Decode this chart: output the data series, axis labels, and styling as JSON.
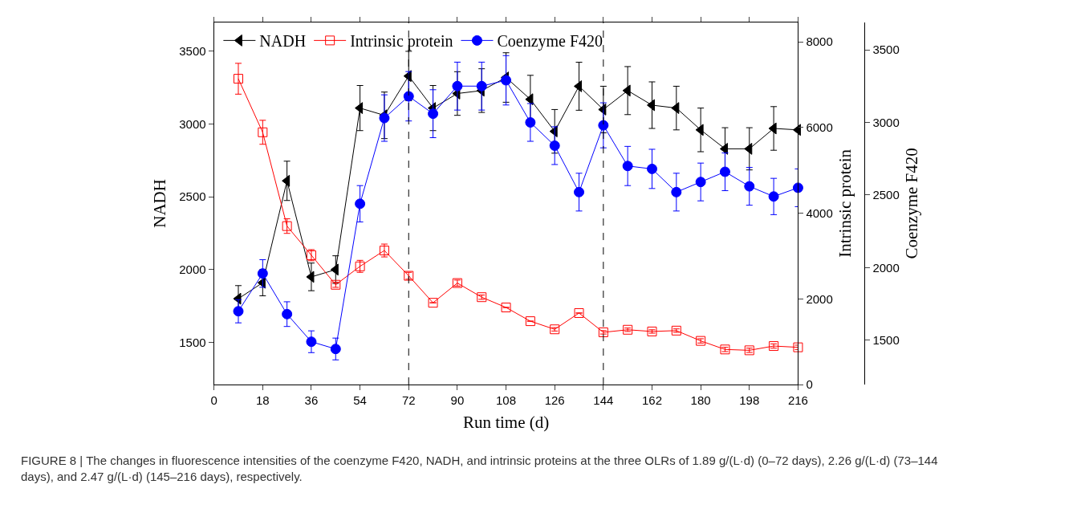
{
  "chart_data": {
    "type": "line",
    "x": [
      9,
      18,
      27,
      36,
      45,
      54,
      63,
      72,
      81,
      90,
      99,
      108,
      117,
      126,
      135,
      144,
      153,
      162,
      171,
      180,
      189,
      198,
      207,
      216
    ],
    "xlabel": "Run time (d)",
    "ylabel": "NADH",
    "y2label": "Intrinsic protein",
    "y3label": "Coenzyme F420",
    "xlim": [
      0,
      216
    ],
    "xticks": [
      0,
      18,
      36,
      54,
      72,
      90,
      108,
      126,
      144,
      162,
      180,
      198,
      216
    ],
    "ylim": [
      1210,
      3700
    ],
    "yticks": [
      1500,
      2000,
      2500,
      3000,
      3500
    ],
    "y2lim": [
      0,
      8460
    ],
    "y2ticks": [
      0,
      2000,
      4000,
      6000,
      8000
    ],
    "y3lim": [
      1195,
      3690
    ],
    "y3ticks": [
      1500,
      2000,
      2500,
      3000,
      3500
    ],
    "series": [
      {
        "name": "NADH",
        "color": "#000000",
        "marker": "triangle",
        "values": [
          1800,
          1910,
          2610,
          1950,
          2000,
          3110,
          3060,
          3330,
          3110,
          3210,
          3230,
          3320,
          3170,
          2950,
          3260,
          3100,
          3230,
          3130,
          3110,
          2960,
          2830,
          2830,
          2970,
          2960
        ],
        "errors": [
          90,
          90,
          135,
          95,
          95,
          155,
          160,
          170,
          155,
          150,
          150,
          170,
          165,
          150,
          165,
          160,
          165,
          160,
          150,
          150,
          145,
          145,
          150,
          null
        ]
      },
      {
        "name": "Intrinsic protein",
        "color": "#ff0000",
        "marker": "square",
        "axis": "y2",
        "values": [
          7140,
          5890,
          3700,
          3020,
          2330,
          2760,
          3130,
          2540,
          1910,
          2370,
          2040,
          1800,
          1480,
          1290,
          1670,
          1220,
          1280,
          1240,
          1260,
          1020,
          820,
          800,
          900,
          870
        ],
        "errors": [
          360,
          280,
          170,
          130,
          60,
          140,
          150,
          80,
          null,
          70,
          50,
          null,
          null,
          40,
          null,
          40,
          40,
          40,
          40,
          50,
          50,
          50,
          50,
          50
        ]
      },
      {
        "name": "Coenzyme F420",
        "color": "#0000ff",
        "marker": "circle",
        "axis": "y3",
        "values": [
          1700,
          1960,
          1680,
          1490,
          1440,
          2440,
          3030,
          3180,
          3060,
          3250,
          3250,
          3290,
          3000,
          2840,
          2520,
          2980,
          2700,
          2680,
          2520,
          2590,
          2660,
          2560,
          2490,
          2550
        ],
        "errors": [
          80,
          95,
          85,
          75,
          75,
          125,
          160,
          170,
          165,
          165,
          165,
          170,
          130,
          130,
          130,
          155,
          135,
          135,
          130,
          130,
          130,
          130,
          125,
          130
        ]
      }
    ],
    "ref_lines": [
      {
        "axis": "x",
        "value": 72,
        "color": "#000000",
        "line_style": "dashed"
      },
      {
        "axis": "x",
        "value": 144,
        "color": "#000000",
        "line_style": "dashed"
      }
    ],
    "legend": "top left",
    "line_style": "solid",
    "annotations": [
      "FIGURE 8 | The changes in fluorescence intensities of the coenzyme F420, NADH, and intrinsic proteins at the three OLRs of 1.89 g/(L·d) (0–72 days), 2.26 g/(L·d) (73–144 days), and 2.47 g/(L·d) (145–216 days), respectively."
    ]
  }
}
